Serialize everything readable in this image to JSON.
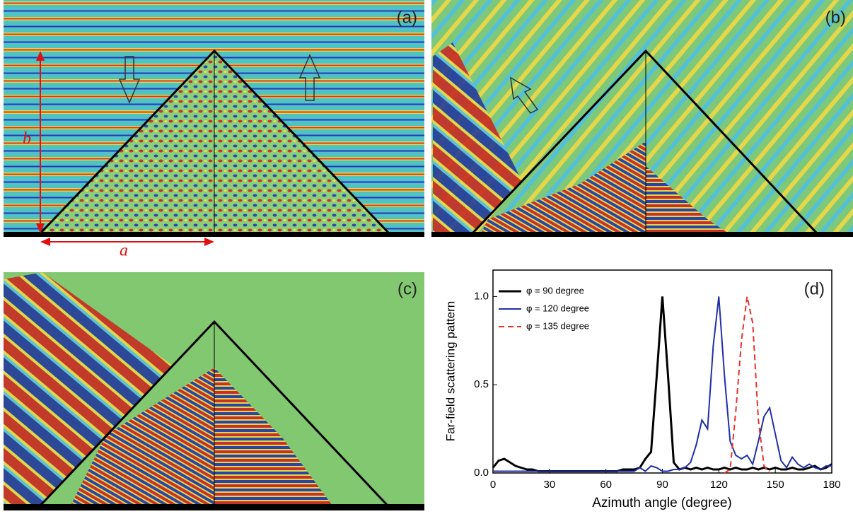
{
  "panels": [
    {
      "label": "(a)",
      "width_symbol": "a",
      "height_symbol": "b"
    },
    {
      "label": "(b)"
    },
    {
      "label": "(c)"
    }
  ],
  "chart_data": {
    "type": "line",
    "label": "(d)",
    "x_label": "Azimuth angle (degree)",
    "y_label": "Far-field scattering pattern",
    "xlim": [
      0,
      180
    ],
    "ylim": [
      0,
      1.15
    ],
    "xticks": [
      0,
      30,
      60,
      90,
      120,
      150,
      180
    ],
    "yticks": [
      {
        "value": 0,
        "label": "0.0"
      },
      {
        "value": 0.5,
        "label": "0.5"
      },
      {
        "value": 1,
        "label": "1.0"
      }
    ],
    "x": [
      0,
      3,
      6,
      9,
      12,
      15,
      18,
      21,
      24,
      27,
      30,
      33,
      36,
      39,
      42,
      45,
      48,
      51,
      54,
      57,
      60,
      63,
      66,
      69,
      72,
      75,
      78,
      81,
      84,
      87,
      90,
      93,
      96,
      99,
      102,
      105,
      108,
      111,
      114,
      117,
      120,
      123,
      126,
      129,
      132,
      135,
      138,
      141,
      144,
      147,
      150,
      153,
      156,
      159,
      162,
      165,
      168,
      171,
      174,
      177,
      180
    ],
    "series": [
      {
        "name": "φ = 90 degree",
        "color": "#000000",
        "dash": false,
        "values": [
          0.03,
          0.07,
          0.08,
          0.06,
          0.04,
          0.03,
          0.02,
          0.02,
          0.01,
          0.01,
          0.01,
          0.01,
          0.01,
          0.01,
          0.01,
          0.01,
          0.01,
          0.01,
          0.01,
          0.01,
          0.01,
          0.01,
          0.01,
          0.02,
          0.02,
          0.02,
          0.03,
          0.08,
          0.12,
          0.55,
          1.0,
          0.55,
          0.06,
          0.02,
          0.03,
          0.02,
          0.03,
          0.02,
          0.03,
          0.02,
          0.02,
          0.03,
          0.02,
          0.03,
          0.02,
          0.02,
          0.03,
          0.02,
          0.03,
          0.02,
          0.03,
          0.02,
          0.02,
          0.03,
          0.02,
          0.02,
          0.03,
          0.04,
          0.02,
          0.03,
          0.05
        ]
      },
      {
        "name": "φ = 120 degree",
        "color": "#1f2fa8",
        "dash": false,
        "values": [
          0.01,
          0.01,
          0.01,
          0.01,
          0.01,
          0.01,
          0.01,
          0.01,
          0.01,
          0.01,
          0.01,
          0.01,
          0.01,
          0.01,
          0.01,
          0.01,
          0.01,
          0.01,
          0.01,
          0.01,
          0.01,
          0.01,
          0.01,
          0.01,
          0.01,
          0.01,
          0.03,
          0.01,
          0.04,
          0.03,
          0.01,
          0.01,
          0.02,
          0.02,
          0.03,
          0.06,
          0.16,
          0.3,
          0.25,
          0.72,
          1.0,
          0.55,
          0.18,
          0.1,
          0.08,
          0.1,
          0.05,
          0.18,
          0.32,
          0.37,
          0.22,
          0.07,
          0.03,
          0.09,
          0.05,
          0.03,
          0.05,
          0.03,
          0.02,
          0.04,
          0.04
        ]
      },
      {
        "name": "φ = 135 degree",
        "color": "#e8322a",
        "dash": true,
        "values": [
          null,
          null,
          null,
          null,
          null,
          null,
          null,
          null,
          null,
          null,
          null,
          null,
          null,
          null,
          null,
          null,
          null,
          null,
          null,
          null,
          null,
          null,
          null,
          null,
          null,
          null,
          null,
          null,
          null,
          null,
          null,
          null,
          null,
          null,
          null,
          null,
          null,
          null,
          null,
          null,
          null,
          0.0,
          0.02,
          0.35,
          0.75,
          1.0,
          0.85,
          0.3,
          0.04,
          0.0,
          null,
          null,
          null,
          null,
          null,
          null,
          null,
          null,
          null,
          null,
          null
        ]
      }
    ]
  }
}
